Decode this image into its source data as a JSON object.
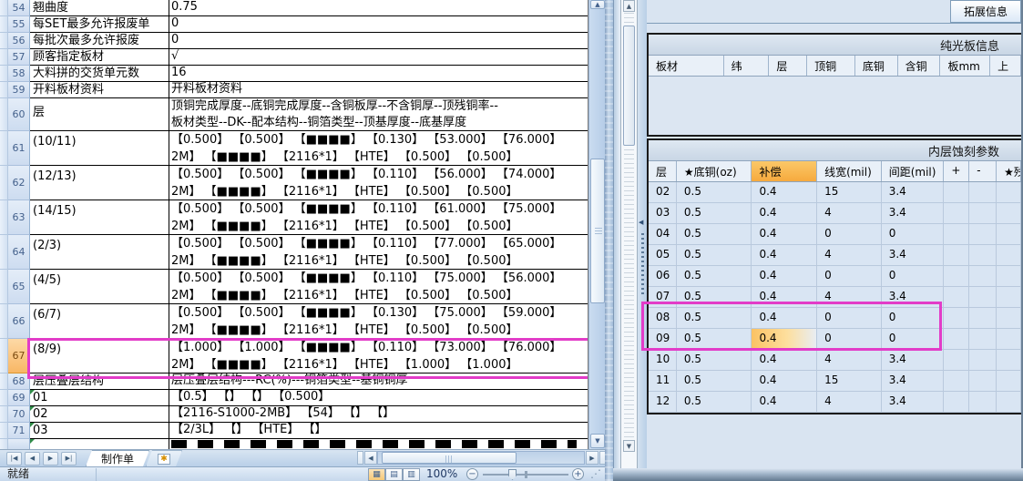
{
  "excel": {
    "rows": [
      {
        "num": "54",
        "label": "翘曲度",
        "value": "0.75"
      },
      {
        "num": "55",
        "label": "每SET最多允许报废单",
        "value": "0"
      },
      {
        "num": "56",
        "label": "每批次最多允许报废",
        "value": "0"
      },
      {
        "num": "57",
        "label": "顾客指定板材",
        "value": "√"
      },
      {
        "num": "58",
        "label": "大料拼的交货单元数",
        "value": "16"
      },
      {
        "num": "59",
        "label": "开料板材资料",
        "value": "开料板材资料"
      },
      {
        "num": "60",
        "label": "层",
        "lines": [
          "顶铜完成厚度--底铜完成厚度--含铜板厚--不含铜厚--顶残铜率--",
          "板材类型--DK--配本结构--铜箔类型--顶基厚度--底基厚度"
        ]
      },
      {
        "num": "61",
        "label": "(10/11)",
        "lines": [
          "【0.500】 【0.500】 【■■■■】 【0.130】 【53.000】 【76.000】",
          "2M】 【■■■■】 【2116*1】 【HTE】 【0.500】 【0.500】"
        ]
      },
      {
        "num": "62",
        "label": "(12/13)",
        "lines": [
          "【0.500】 【0.500】 【■■■■】 【0.110】 【56.000】 【74.000】",
          "2M】 【■■■■】 【2116*1】 【HTE】 【0.500】 【0.500】"
        ]
      },
      {
        "num": "63",
        "label": "(14/15)",
        "lines": [
          "【0.500】 【0.500】 【■■■■】 【0.110】 【61.000】 【75.000】",
          "2M】 【■■■■】 【2116*1】 【HTE】 【0.500】 【0.500】"
        ]
      },
      {
        "num": "64",
        "label": "(2/3)",
        "lines": [
          "【0.500】 【0.500】 【■■■■】 【0.110】 【77.000】 【65.000】",
          "2M】 【■■■■】 【2116*1】 【HTE】 【0.500】 【0.500】"
        ]
      },
      {
        "num": "65",
        "label": "(4/5)",
        "lines": [
          "【0.500】 【0.500】 【■■■■】 【0.110】 【75.000】 【56.000】",
          "2M】 【■■■■】 【2116*1】 【HTE】 【0.500】 【0.500】"
        ]
      },
      {
        "num": "66",
        "label": "(6/7)",
        "lines": [
          "【0.500】 【0.500】 【■■■■】 【0.130】 【75.000】 【59.000】",
          "2M】 【■■■■】 【2116*1】 【HTE】 【0.500】 【0.500】"
        ]
      },
      {
        "num": "67",
        "label": "(8/9)",
        "highlight": true,
        "lines": [
          "【1.000】 【1.000】 【■■■■】 【0.110】 【73.000】 【76.000】",
          "2M】 【■■■■】 【2116*1】 【HTE】 【1.000】 【1.000】"
        ]
      },
      {
        "num": "68",
        "label": "层压叠层结构",
        "value": "层压叠层结构---RC(%)---铜箔类型--基铜铜厚"
      },
      {
        "num": "69",
        "label": "01",
        "marker": true,
        "value": "【0.5】 【】 【】 【0.500】"
      },
      {
        "num": "70",
        "label": "02",
        "marker": true,
        "value": "【2116-S1000-2MB】 【54】 【】 【】"
      },
      {
        "num": "71",
        "label": "03",
        "marker": true,
        "value": "【2/3L】 【】 【HTE】 【】"
      },
      {
        "num": "",
        "partial": true,
        "marker": true
      }
    ],
    "tab_bar": {
      "sheet_tab": "制作单"
    },
    "status_bar": {
      "ready": "就绪",
      "zoom": "100%"
    }
  },
  "right_panel": {
    "expand_button": "拓展信息",
    "board_table": {
      "title": "纯光板信息",
      "columns": [
        "板材",
        "纬",
        "层",
        "顶铜",
        "底铜",
        "含铜",
        "板mm",
        "上"
      ]
    },
    "etch_table": {
      "title": "内层蚀刻参数",
      "columns": [
        "层",
        "★底铜(oz)",
        "补偿",
        "线宽(mil)",
        "间距(mil)",
        "+",
        "-",
        "★残"
      ],
      "highlight_column": "补偿",
      "highlight_cell": {
        "layer": "09",
        "column": "补偿"
      },
      "rows": [
        [
          "02",
          "0.5",
          "0.4",
          "15",
          "3.4"
        ],
        [
          "03",
          "0.5",
          "0.4",
          "4",
          "3.4"
        ],
        [
          "04",
          "0.5",
          "0.4",
          "0",
          "0"
        ],
        [
          "05",
          "0.5",
          "0.4",
          "4",
          "3.4"
        ],
        [
          "06",
          "0.5",
          "0.4",
          "0",
          "0"
        ],
        [
          "07",
          "0.5",
          "0.4",
          "4",
          "3.4"
        ],
        [
          "08",
          "0.5",
          "0.4",
          "0",
          "0"
        ],
        [
          "09",
          "0.5",
          "0.4",
          "0",
          "0"
        ],
        [
          "10",
          "0.5",
          "0.4",
          "4",
          "3.4"
        ],
        [
          "11",
          "0.5",
          "0.4",
          "15",
          "3.4"
        ],
        [
          "12",
          "0.5",
          "0.4",
          "4",
          "3.4"
        ]
      ]
    }
  },
  "icons": {
    "scroll_first": "|◀",
    "scroll_prev": "◀",
    "scroll_next": "▶",
    "scroll_last": "▶|",
    "arrow_up": "▲",
    "arrow_down": "▼",
    "arrow_left": "◀",
    "arrow_right": "▶",
    "insert_sheet": "✱",
    "view_normal": "▦",
    "view_layout": "▤",
    "view_break": "▥",
    "zoom_out": "−",
    "zoom_in": "+",
    "resize_grip": "⋰",
    "collapse": "◀"
  },
  "colors": {
    "highlight_box": "#e23cc8",
    "selected_row_header": "#f8b765",
    "field_highlight": "#f6aa3e",
    "cell_highlight": "#fbc263"
  }
}
